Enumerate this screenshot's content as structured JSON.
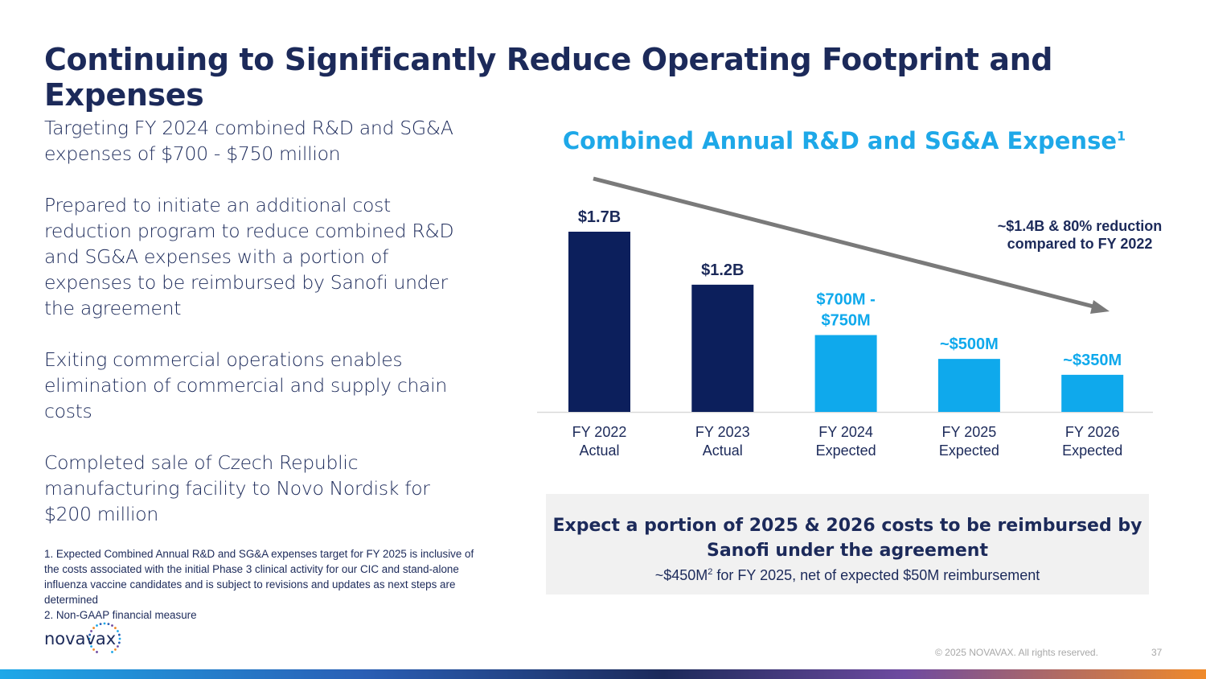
{
  "slide": {
    "title": "Continuing to Significantly Reduce Operating Footprint and Expenses",
    "bullets": [
      "Targeting FY 2024 combined R&D and SG&A expenses of $700 - $750 million",
      "Prepared to initiate an additional cost reduction program to reduce combined R&D and SG&A expenses with a portion of expenses to be reimbursed by Sanofi under the agreement",
      "Exiting commercial operations enables elimination of commercial and supply chain costs",
      "Completed sale of Czech Republic manufacturing facility to Novo Nordisk for $200 million"
    ],
    "footnotes": [
      "1.  Expected Combined Annual R&D and SG&A expenses target for FY 2025 is inclusive of the costs associated with the initial Phase 3 clinical activity for our CIC and stand-alone influenza vaccine candidates and is subject to revisions and updates as next steps are determined",
      "2. Non-GAAP financial measure"
    ],
    "logo_text": "novavax",
    "callout": "~$1.4B & 80% reduction compared to FY 2022",
    "note": {
      "headline": "Expect a portion of 2025 & 2026 costs to be reimbursed by Sanofi under the agreement",
      "sub_prefix": "~$450M",
      "sub_sup": "2",
      "sub_suffix": " for FY 2025, net of expected $50M reimbursement"
    },
    "copyright": "© 2025 NOVAVAX. All rights reserved.",
    "page_number": "37"
  },
  "chart_data": {
    "type": "bar",
    "title": "Combined Annual R&D and SG&A Expense",
    "title_sup": "1",
    "categories": [
      [
        "FY 2022",
        "Actual"
      ],
      [
        "FY 2023",
        "Actual"
      ],
      [
        "FY 2024",
        "Expected"
      ],
      [
        "FY 2025",
        "Expected"
      ],
      [
        "FY 2026",
        "Expected"
      ]
    ],
    "values_musd": [
      1700,
      1200,
      725,
      500,
      350
    ],
    "data_labels": [
      [
        "$1.7B"
      ],
      [
        "$1.2B"
      ],
      [
        "$700M -",
        "$750M"
      ],
      [
        "~$500M"
      ],
      [
        "~$350M"
      ]
    ],
    "status": [
      "actual",
      "actual",
      "expected",
      "expected",
      "expected"
    ],
    "ylim": [
      0,
      1700
    ],
    "colors": {
      "actual": "#0c1f5c",
      "expected": "#0fa9ec",
      "trend": "#7a7a7a",
      "axis": "#d9d9d9",
      "label_dark": "#1c2a5a",
      "label_light": "#0fa9ec",
      "category": "#1c2a5a"
    },
    "trend_arrow": true,
    "grid": false
  }
}
